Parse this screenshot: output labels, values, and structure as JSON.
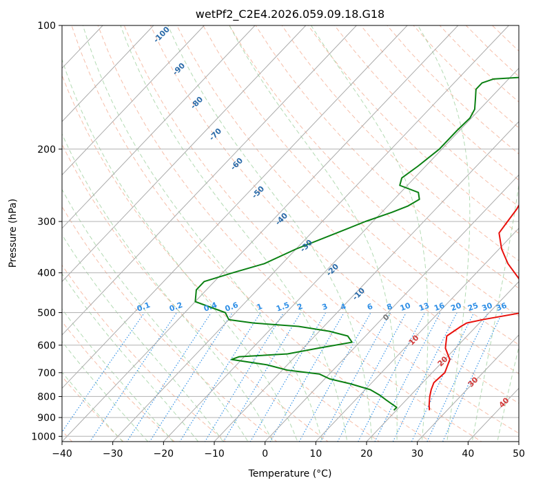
{
  "chart_data": {
    "type": "line",
    "title": "wetPf2_C2E4.2026.059.09.18.G18",
    "xlabel": "Temperature (°C)",
    "ylabel": "Pressure (hPa)",
    "xlim": [
      -40,
      50
    ],
    "ylim": [
      1030,
      100
    ],
    "y_scale": "log",
    "grid": true,
    "x_ticks": [
      -40,
      -30,
      -20,
      -10,
      0,
      10,
      20,
      30,
      40,
      50
    ],
    "y_ticks": [
      100,
      200,
      300,
      400,
      500,
      600,
      700,
      800,
      900,
      1000
    ],
    "colors": {
      "temperature": "#e8100c",
      "dewpoint": "#0a8012",
      "isotherm": "#aaaaaa",
      "dry_adiabat": "#f2a384",
      "moist_adiabat": "#9fd19f",
      "mixing_ratio": "#2f8fe6",
      "dry_adiabat_label": "#2a6aa8",
      "moist_label": "#d23a3a"
    },
    "series": [
      {
        "key": "temperature",
        "pressure": [
          864,
          840,
          800,
          770,
          740,
          700,
          650,
          610,
          570,
          540,
          530,
          520,
          500,
          480,
          460,
          440,
          410,
          380,
          350,
          320,
          300,
          280,
          260,
          240,
          225,
          210,
          195,
          180,
          165,
          155,
          140,
          125,
          120
        ],
        "x": [
          26.5,
          25.5,
          24,
          23,
          22.2,
          22.5,
          21,
          18,
          16,
          17,
          17.5,
          20,
          26.5,
          26,
          24.5,
          23,
          19,
          14.5,
          10.5,
          7,
          6.5,
          6,
          5,
          4.5,
          3,
          0.5,
          -2,
          -4,
          -6,
          -7,
          -6.8,
          -6,
          -5.5
        ]
      },
      {
        "key": "dewpoint",
        "pressure": [
          864,
          850,
          835,
          815,
          795,
          770,
          745,
          725,
          705,
          690,
          670,
          650,
          640,
          630,
          610,
          590,
          570,
          555,
          540,
          530,
          520,
          500,
          470,
          440,
          420,
          400,
          380,
          350,
          320,
          300,
          285,
          275,
          265,
          255,
          245,
          235,
          220,
          200,
          180,
          168,
          160,
          150,
          143,
          138,
          135,
          133,
          131,
          128,
          125,
          120,
          115,
          108,
          100
        ],
        "x": [
          19.5,
          19.5,
          18,
          16,
          14,
          11,
          6,
          1,
          -2,
          -9,
          -14,
          -22,
          -21,
          -12,
          -7,
          -1.5,
          -3.5,
          -8,
          -15,
          -24.5,
          -30,
          -32,
          -40,
          -42,
          -42,
          -38,
          -33.5,
          -30,
          -25,
          -21.5,
          -18,
          -16,
          -15,
          -16.5,
          -21.5,
          -22.5,
          -21.5,
          -20.5,
          -20.5,
          -20.3,
          -21,
          -23,
          -24.5,
          -24.5,
          -23,
          -15,
          -10,
          -6,
          -3,
          -2.5,
          -3.5,
          -4,
          -4
        ]
      }
    ],
    "dry_adiabat_labels": [
      "-100",
      "-90",
      "-80",
      "-70",
      "-60",
      "-50",
      "-40",
      "-30",
      "-20",
      "-10"
    ],
    "moist_adiabat_labels": [
      "0",
      "10",
      "20",
      "30",
      "40"
    ],
    "mixing_ratio_labels": [
      "0.1",
      "0.2",
      "0.4",
      "0.6",
      "1",
      "1.5",
      "2",
      "3",
      "4",
      "6",
      "8",
      "10",
      "13",
      "16",
      "20",
      "25",
      "30",
      "36"
    ]
  }
}
